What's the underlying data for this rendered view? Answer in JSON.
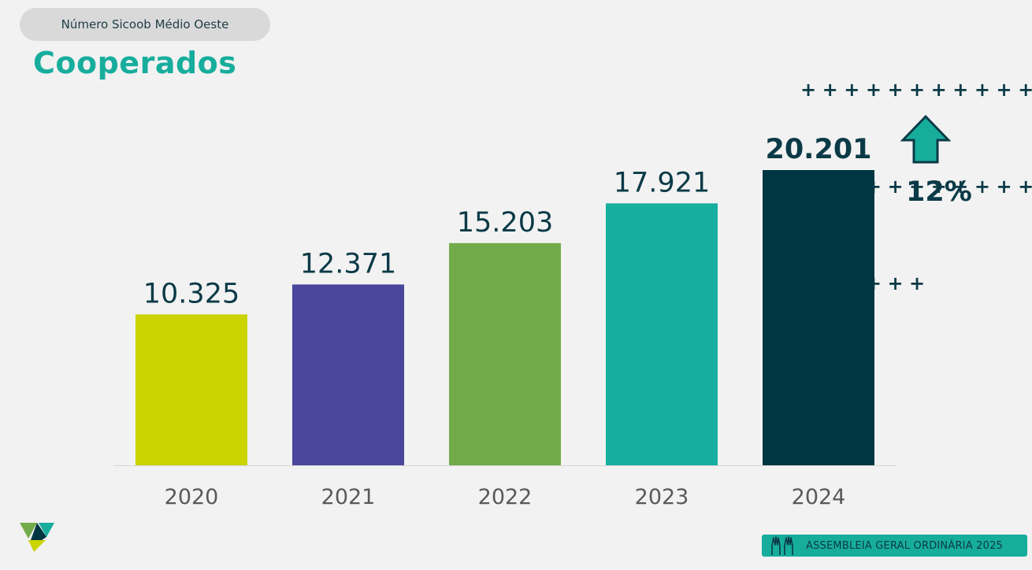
{
  "header": {
    "subtitle": "Número Sicoob Médio Oeste",
    "title": "Cooperados"
  },
  "decoration": {
    "plus_rows": [
      "+++++++++++",
      "+++++++++++",
      "++++++"
    ]
  },
  "growth": {
    "percent_label": "12%",
    "icon": "up-arrow-icon"
  },
  "footer": {
    "label": "ASSEMBLEIA GERAL ORDINÁRIA 2025",
    "icon": "raised-hands-icon"
  },
  "logo": {
    "icon": "sicoob-logo-icon"
  },
  "colors": {
    "accent": "#17ad9d",
    "dark": "#0b3a47",
    "background": "#f2f2f2"
  },
  "chart_data": {
    "type": "bar",
    "categories": [
      "2020",
      "2021",
      "2022",
      "2023",
      "2024"
    ],
    "values": [
      10325,
      12371,
      15203,
      17921,
      20201
    ],
    "value_labels": [
      "10.325",
      "12.371",
      "15.203",
      "17.921",
      "20.201"
    ],
    "bar_colors": [
      "#cbd300",
      "#49469c",
      "#72ab49",
      "#16ae9f",
      "#003642"
    ],
    "ylim": [
      0,
      20201
    ],
    "grid": false,
    "title": "",
    "xlabel": "",
    "ylabel": ""
  }
}
